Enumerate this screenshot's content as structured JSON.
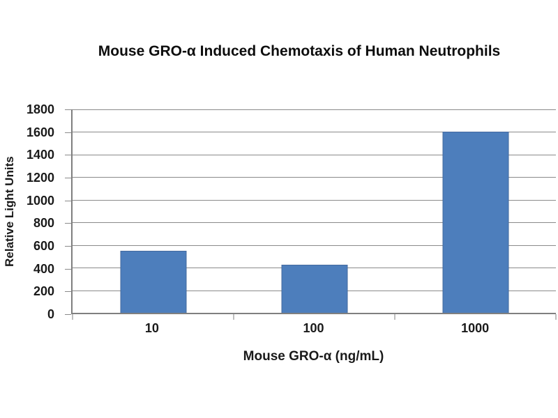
{
  "chart_data": {
    "type": "bar",
    "title": "Mouse GRO-α Induced Chemotaxis of Human Neutrophils",
    "xlabel": "Mouse GRO-α (ng/mL)",
    "ylabel": "Relative Light Units",
    "categories": [
      "10",
      "100",
      "1000"
    ],
    "values": [
      550,
      425,
      1600
    ],
    "ylim": [
      0,
      1800
    ],
    "ytick_step": 200,
    "yticks": [
      "0",
      "200",
      "400",
      "600",
      "800",
      "1000",
      "1200",
      "1400",
      "1600",
      "1800"
    ],
    "grid": true,
    "legend": false,
    "colors": {
      "bar_fill": "#4d7ebc",
      "bar_border": "#44699e",
      "gridline": "#8a8a8a",
      "axis": "#7f7f7f",
      "text": "#1a1a1a",
      "background": "#ffffff"
    }
  }
}
